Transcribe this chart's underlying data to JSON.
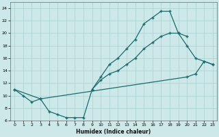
{
  "xlabel": "Humidex (Indice chaleur)",
  "background_color": "#cce8e8",
  "grid_color": "#aacfcf",
  "line_color": "#1a6b6b",
  "xlim": [
    -0.5,
    23.5
  ],
  "ylim": [
    6,
    25
  ],
  "yticks": [
    6,
    8,
    10,
    12,
    14,
    16,
    18,
    20,
    22,
    24
  ],
  "xticks": [
    0,
    1,
    2,
    3,
    4,
    5,
    6,
    7,
    8,
    9,
    10,
    11,
    12,
    13,
    14,
    15,
    16,
    17,
    18,
    19,
    20,
    21,
    22,
    23
  ],
  "curve_upper_x": [
    9,
    10,
    11,
    12,
    13,
    14,
    15,
    16,
    17,
    18,
    19,
    20,
    21,
    22,
    23
  ],
  "curve_upper_y": [
    11,
    13,
    15,
    16,
    17.5,
    19,
    21.5,
    22.5,
    23.5,
    23.5,
    20,
    18,
    16,
    15.5,
    15
  ],
  "curve_mid_x": [
    0,
    1,
    2,
    3,
    4,
    5,
    6,
    7,
    8,
    9,
    10,
    11,
    12,
    13,
    14,
    15,
    16,
    17,
    18,
    19,
    20
  ],
  "curve_mid_y": [
    11,
    10,
    9,
    9.5,
    7.5,
    7,
    6.5,
    6.5,
    6.5,
    11,
    12.5,
    13.5,
    14,
    15,
    16,
    17.5,
    18.5,
    19.5,
    20,
    20,
    19.5
  ],
  "curve_diag_x": [
    0,
    3,
    20,
    21,
    22,
    23
  ],
  "curve_diag_y": [
    11,
    9.5,
    13,
    13.5,
    15.5,
    15
  ]
}
